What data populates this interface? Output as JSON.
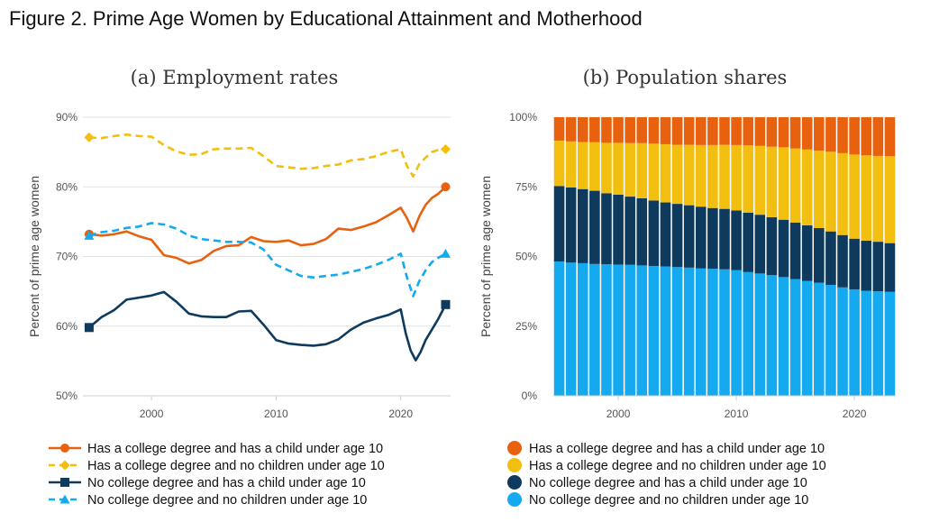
{
  "figure_title": "Figure 2. Prime Age Women by Educational Attainment and Motherhood",
  "colors": {
    "college_child": "#E8610F",
    "college_nochild": "#F2BE0F",
    "nocollege_child": "#0E3A5E",
    "nocollege_nochild": "#15AAEF"
  },
  "chart_data": [
    {
      "type": "line",
      "title": "(a) Employment rates",
      "ylabel": "Percent of prime age women",
      "xlim": [
        1994.5,
        2024
      ],
      "ylim": [
        50,
        90
      ],
      "xticks": [
        2000,
        2010,
        2020
      ],
      "yticks": [
        50,
        60,
        70,
        80,
        90
      ],
      "ytick_labels": [
        "50%",
        "60%",
        "70%",
        "80%",
        "90%"
      ],
      "grid": true,
      "legend_position": "bottom",
      "series": [
        {
          "name": "Has a college degree and has a child under age 10",
          "color": "#E8610F",
          "dash": "solid",
          "marker": "circle",
          "x": [
            1995,
            1996,
            1997,
            1998,
            1999,
            2000,
            2001,
            2002,
            2003,
            2004,
            2005,
            2006,
            2007,
            2008,
            2009,
            2010,
            2011,
            2012,
            2013,
            2014,
            2015,
            2016,
            2017,
            2018,
            2019,
            2020,
            2020.5,
            2021,
            2021.5,
            2022,
            2022.5,
            2023,
            2023.6
          ],
          "y": [
            73.2,
            73,
            73.2,
            73.6,
            72.9,
            72.4,
            70.2,
            69.8,
            69,
            69.5,
            70.8,
            71.5,
            71.6,
            72.8,
            72.2,
            72.1,
            72.3,
            71.6,
            71.8,
            72.5,
            74,
            73.8,
            74.3,
            74.9,
            75.9,
            77,
            75.5,
            73.6,
            75.8,
            77.4,
            78.4,
            79,
            80
          ]
        },
        {
          "name": "Has a college degree and no children under age 10",
          "color": "#F2BE0F",
          "dash": "dashed",
          "marker": "diamond",
          "x": [
            1995,
            1996,
            1997,
            1998,
            1999,
            2000,
            2001,
            2002,
            2003,
            2004,
            2005,
            2006,
            2007,
            2008,
            2009,
            2010,
            2011,
            2012,
            2013,
            2014,
            2015,
            2016,
            2017,
            2018,
            2019,
            2020,
            2020.5,
            2021,
            2021.5,
            2022,
            2022.5,
            2023,
            2023.6
          ],
          "y": [
            87.1,
            87,
            87.3,
            87.5,
            87.3,
            87.2,
            86,
            85.1,
            84.6,
            84.7,
            85.4,
            85.5,
            85.5,
            85.6,
            84.4,
            83,
            82.8,
            82.6,
            82.7,
            83,
            83.2,
            83.8,
            84,
            84.4,
            85,
            85.4,
            83,
            81.5,
            83.3,
            84.2,
            85,
            85.3,
            85.4
          ]
        },
        {
          "name": "No college degree and has a child under age 10",
          "color": "#0E3A5E",
          "dash": "solid",
          "marker": "square",
          "x": [
            1995,
            1996,
            1997,
            1998,
            1999,
            2000,
            2001,
            2002,
            2003,
            2004,
            2005,
            2006,
            2007,
            2008,
            2009,
            2010,
            2011,
            2012,
            2013,
            2014,
            2015,
            2016,
            2017,
            2018,
            2019,
            2020,
            2020.4,
            2020.8,
            2021.2,
            2021.6,
            2022,
            2022.5,
            2023,
            2023.6
          ],
          "y": [
            59.8,
            61.3,
            62.3,
            63.8,
            64.1,
            64.4,
            64.9,
            63.5,
            61.8,
            61.4,
            61.3,
            61.3,
            62.1,
            62.2,
            60.2,
            58,
            57.5,
            57.3,
            57.2,
            57.4,
            58.1,
            59.5,
            60.5,
            61.1,
            61.6,
            62.4,
            59,
            56.5,
            55.1,
            56.3,
            58,
            59.5,
            61,
            63.1
          ]
        },
        {
          "name": "No college degree and no children under age 10",
          "color": "#15AAEF",
          "dash": "dashed",
          "marker": "triangle",
          "x": [
            1995,
            1996,
            1997,
            1998,
            1999,
            2000,
            2001,
            2002,
            2003,
            2004,
            2005,
            2006,
            2007,
            2008,
            2009,
            2010,
            2011,
            2012,
            2013,
            2014,
            2015,
            2016,
            2017,
            2018,
            2019,
            2020,
            2020.5,
            2021,
            2021.5,
            2022,
            2022.5,
            2023,
            2023.6
          ],
          "y": [
            73,
            73.5,
            73.7,
            74.1,
            74.3,
            74.8,
            74.6,
            74,
            73,
            72.5,
            72.3,
            72.1,
            72.1,
            72,
            71,
            68.8,
            68,
            67.2,
            67,
            67.2,
            67.4,
            67.8,
            68.2,
            68.8,
            69.5,
            70.4,
            67,
            64.3,
            66.5,
            68,
            69.2,
            69.8,
            70.4
          ]
        }
      ]
    },
    {
      "type": "bar",
      "stacked": true,
      "title": "(b) Population shares",
      "ylabel": "Percent of prime age women",
      "xlim": [
        1994.5,
        2023.5
      ],
      "ylim": [
        0,
        100
      ],
      "xticks": [
        2000,
        2010,
        2020
      ],
      "yticks": [
        0,
        25,
        50,
        75,
        100
      ],
      "ytick_labels": [
        "0%",
        "25%",
        "50%",
        "75%",
        "100%"
      ],
      "legend_position": "bottom",
      "categories": [
        1995,
        1996,
        1997,
        1998,
        1999,
        2000,
        2001,
        2002,
        2003,
        2004,
        2005,
        2006,
        2007,
        2008,
        2009,
        2010,
        2011,
        2012,
        2013,
        2014,
        2015,
        2016,
        2017,
        2018,
        2019,
        2020,
        2021,
        2022,
        2023
      ],
      "series": [
        {
          "name": "No college degree and no children under age 10",
          "color": "#15AAEF",
          "values": [
            48.2,
            47.8,
            47.6,
            47.3,
            47.2,
            47.1,
            47,
            46.8,
            46.6,
            46.4,
            46.2,
            46,
            45.7,
            45.6,
            45.4,
            45.1,
            44.4,
            43.9,
            43.3,
            42.6,
            41.9,
            41.2,
            40.6,
            39.8,
            38.9,
            38.2,
            37.7,
            37.5,
            37.3
          ]
        },
        {
          "name": "No college degree and has a child under age 10",
          "color": "#0E3A5E",
          "values": [
            27.1,
            27,
            26.6,
            26.3,
            25.5,
            25.1,
            24.5,
            24.1,
            23.5,
            23,
            22.7,
            22.4,
            22.2,
            21.8,
            21.7,
            21.4,
            21.3,
            21.1,
            20.8,
            20.6,
            20.3,
            20,
            19.6,
            19.2,
            18.8,
            18.2,
            18,
            17.8,
            17.5
          ]
        },
        {
          "name": "Has a college degree and no children under age 10",
          "color": "#F2BE0F",
          "values": [
            16.3,
            16.5,
            16.9,
            17.4,
            18.1,
            18.6,
            19.2,
            19.8,
            20.4,
            20.9,
            21.2,
            21.7,
            22.1,
            22.6,
            23,
            23.5,
            24.2,
            24.7,
            25.3,
            26,
            26.6,
            27.2,
            27.8,
            28.6,
            29.4,
            30.2,
            30.6,
            30.8,
            31.2
          ]
        },
        {
          "name": "Has a college degree and has a child under age 10",
          "color": "#E8610F",
          "values": [
            8.4,
            8.7,
            8.9,
            9,
            9.2,
            9.2,
            9.3,
            9.3,
            9.5,
            9.7,
            9.9,
            9.9,
            10,
            10,
            9.9,
            10,
            10.1,
            10.3,
            10.6,
            10.8,
            11.2,
            11.6,
            12,
            12.4,
            12.9,
            13.4,
            13.7,
            13.9,
            14
          ]
        }
      ]
    }
  ]
}
